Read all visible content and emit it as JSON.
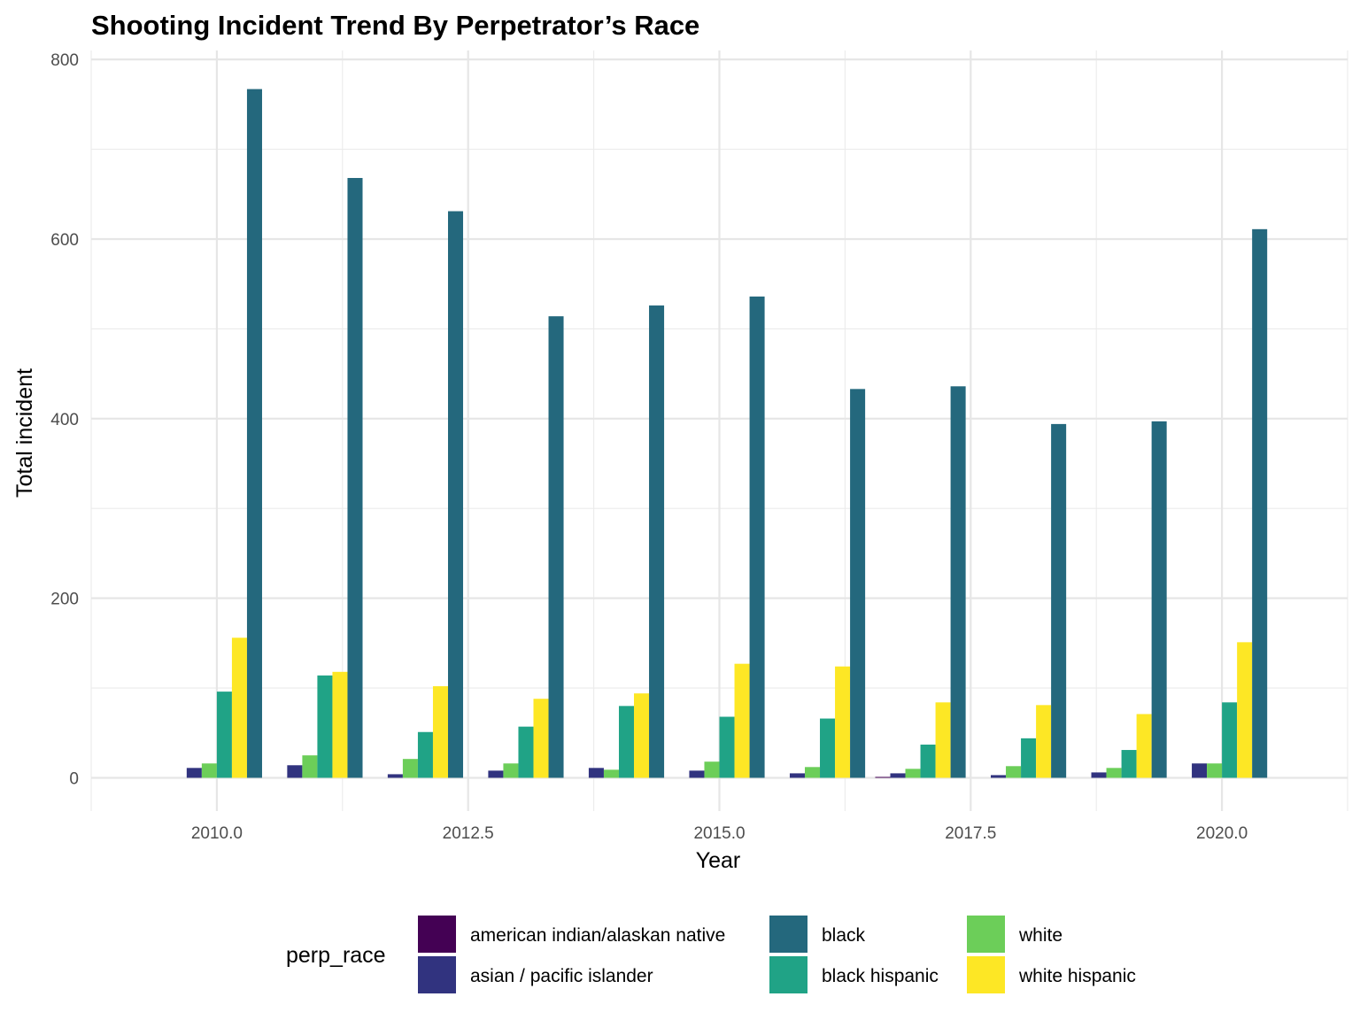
{
  "chart_data": {
    "type": "bar",
    "title": "Shooting Incident Trend By Perpetrator’s Race",
    "xlabel": "Year",
    "ylabel": "Total incident",
    "x": [
      2010,
      2011,
      2012,
      2013,
      2014,
      2015,
      2016,
      2017,
      2018,
      2019,
      2020
    ],
    "xlim": [
      2008.75,
      2021.25
    ],
    "ylim": [
      -37,
      810
    ],
    "x_ticks": [
      2010,
      2012.5,
      2015,
      2017.5,
      2020
    ],
    "x_tick_labels": [
      "2010.0",
      "2012.5",
      "2015.0",
      "2017.5",
      "2020.0"
    ],
    "y_ticks": [
      0,
      200,
      400,
      600,
      800
    ],
    "y_tick_labels": [
      "0",
      "200",
      "400",
      "600",
      "800"
    ],
    "grid": true,
    "legend_title": "perp_race",
    "legend_position": "bottom",
    "series": [
      {
        "name": "american indian/alaskan native",
        "color": "#440154",
        "values": [
          0,
          0,
          0,
          0,
          0,
          0,
          0,
          1,
          0,
          0,
          0
        ]
      },
      {
        "name": "asian / pacific islander",
        "color": "#31337F",
        "values": [
          11,
          14,
          4,
          8,
          11,
          8,
          5,
          5,
          3,
          6,
          16
        ]
      },
      {
        "name": "white",
        "color": "#6CCE59",
        "values": [
          16,
          25,
          21,
          16,
          9,
          18,
          12,
          10,
          13,
          11,
          16
        ]
      },
      {
        "name": "black hispanic",
        "color": "#20A386",
        "values": [
          96,
          114,
          51,
          57,
          80,
          68,
          66,
          37,
          44,
          31,
          84
        ]
      },
      {
        "name": "white hispanic",
        "color": "#FDE725",
        "values": [
          156,
          118,
          102,
          88,
          94,
          127,
          124,
          84,
          81,
          71,
          151
        ]
      },
      {
        "name": "black",
        "color": "#24687D",
        "values": [
          767,
          668,
          631,
          514,
          526,
          536,
          433,
          436,
          394,
          397,
          611
        ]
      }
    ],
    "legend_order": [
      "american indian/alaskan native",
      "asian / pacific islander",
      "black",
      "black hispanic",
      "white",
      "white hispanic"
    ]
  }
}
